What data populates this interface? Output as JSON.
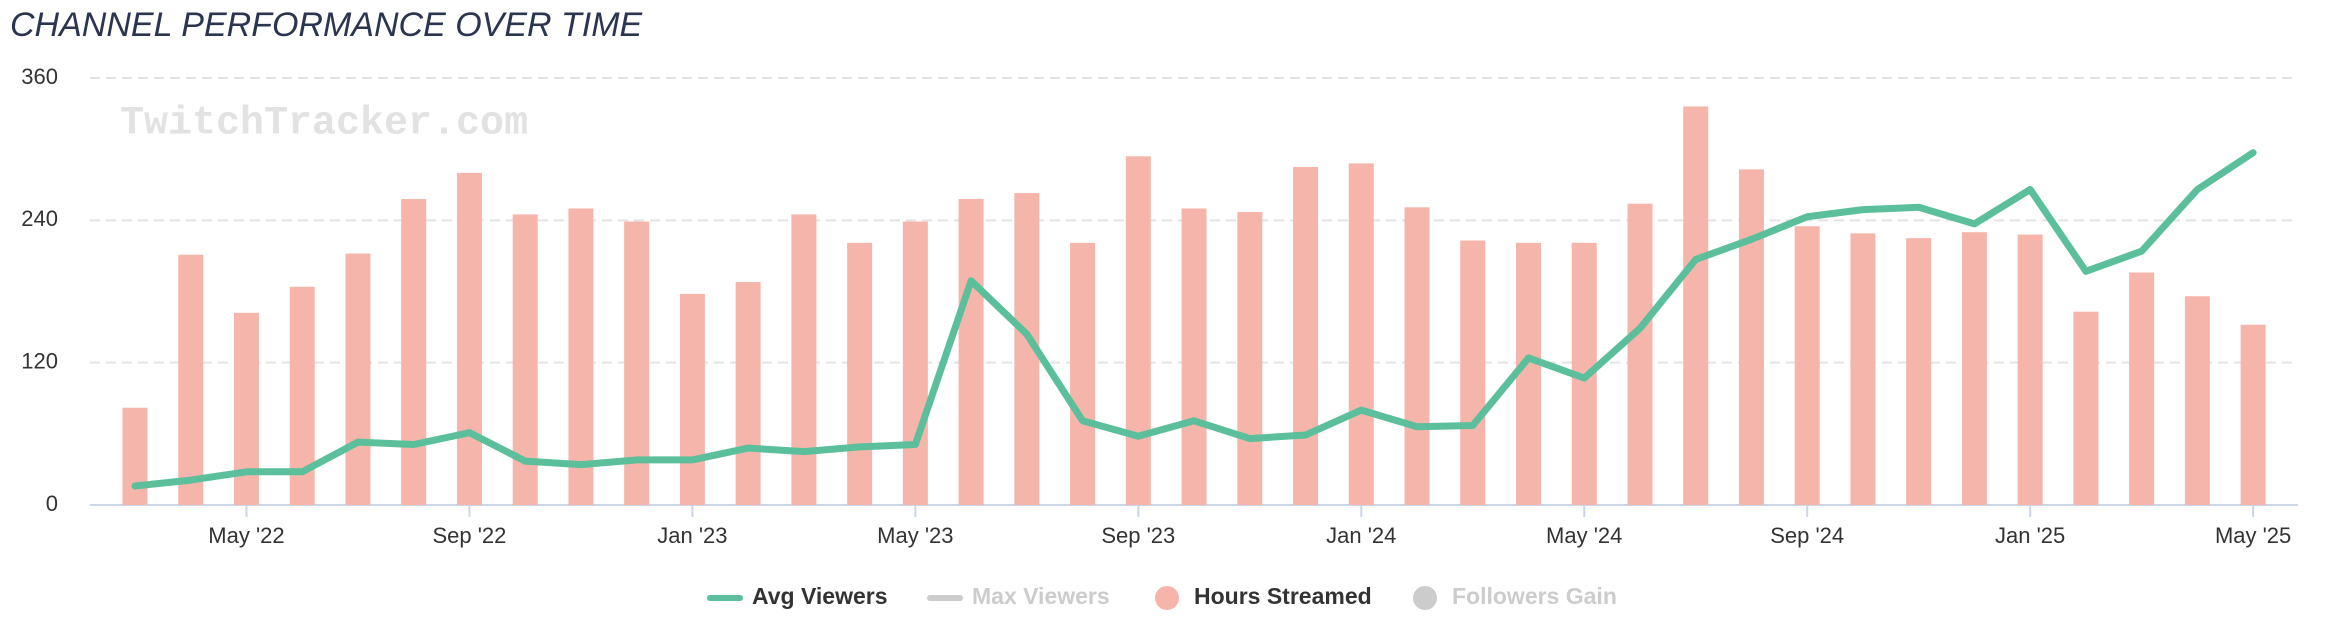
{
  "chart_data": {
    "type": "bar_line",
    "title": "CHANNEL PERFORMANCE OVER TIME",
    "watermark": "TwitchTracker.com",
    "categories": [
      null,
      null,
      "May '22",
      null,
      null,
      null,
      "Sep '22",
      null,
      null,
      null,
      "Jan '23",
      null,
      null,
      null,
      "May '23",
      null,
      null,
      null,
      "Sep '23",
      null,
      null,
      null,
      "Jan '24",
      null,
      null,
      null,
      "May '24",
      null,
      null,
      null,
      "Sep '24",
      null,
      null,
      null,
      "Jan '25",
      null,
      null,
      null,
      "May '25"
    ],
    "series": [
      {
        "name": "Avg Viewers",
        "type": "line",
        "color": "#5cbf9b",
        "values": [
          16,
          21,
          28,
          28,
          53,
          51,
          61,
          37,
          34,
          38,
          38,
          48,
          45,
          49,
          51,
          189,
          144,
          71,
          58,
          71,
          56,
          59,
          80,
          66,
          67,
          124,
          107,
          149,
          207,
          224,
          243,
          249,
          251,
          237,
          266,
          197,
          214,
          266,
          297
        ]
      },
      {
        "name": "Hours Streamed",
        "type": "bar",
        "color": "#f5b5ab",
        "values": [
          82,
          211,
          162,
          184,
          212,
          258,
          280,
          245,
          250,
          239,
          178,
          188,
          245,
          221,
          239,
          258,
          263,
          221,
          294,
          250,
          247,
          285,
          288,
          251,
          223,
          221,
          221,
          254,
          336,
          283,
          235,
          229,
          225,
          230,
          228,
          163,
          196,
          176,
          152
        ]
      }
    ],
    "hidden_series": [
      {
        "name": "Max Viewers",
        "marker": "line"
      },
      {
        "name": "Followers Gain",
        "marker": "circle"
      }
    ],
    "ylim": [
      0,
      360
    ],
    "yticks": [
      0,
      120,
      240,
      360
    ],
    "grid": true
  }
}
